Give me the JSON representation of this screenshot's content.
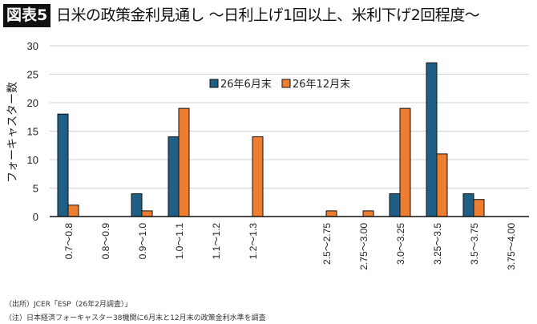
{
  "header": {
    "badge": "図表5",
    "title": "日米の政策金利見通し 〜日利上げ1回以上、米利下げ2回程度〜"
  },
  "chart_data": {
    "type": "bar",
    "title": "日米の政策金利見通し 〜日利上げ1回以上、米利下げ2回程度〜",
    "xlabel": "",
    "ylabel": "フォーキャスター数",
    "ylim": [
      0,
      30
    ],
    "yticks": [
      0,
      5,
      10,
      15,
      20,
      25,
      30
    ],
    "grid": true,
    "legend_position": "top-center",
    "categories": [
      "0.7〜0.8",
      "0.8〜0.9",
      "0.9〜1.0",
      "1.0〜1.1",
      "1.1〜1.2",
      "1.2〜1.3",
      "",
      "2.5〜2.75",
      "2.75〜3.00",
      "3.0〜3.25",
      "3.25〜3.5",
      "3.5〜3.75",
      "3.75〜4.00"
    ],
    "series": [
      {
        "name": "26年6月末",
        "color": "#1f5f86",
        "values": [
          18,
          0,
          4,
          14,
          0,
          0,
          null,
          0,
          0,
          4,
          27,
          4,
          0
        ]
      },
      {
        "name": "26年12月末",
        "color": "#ed7d31",
        "values": [
          2,
          0,
          1,
          19,
          0,
          14,
          null,
          1,
          1,
          19,
          11,
          3,
          0
        ]
      }
    ]
  },
  "footnotes": {
    "source": "（出所）JCER「ESP（26年2月調査）」",
    "note": "（注）日本経済フォーキャスター38機関に6月末と12月末の政策金利水準を調査"
  }
}
